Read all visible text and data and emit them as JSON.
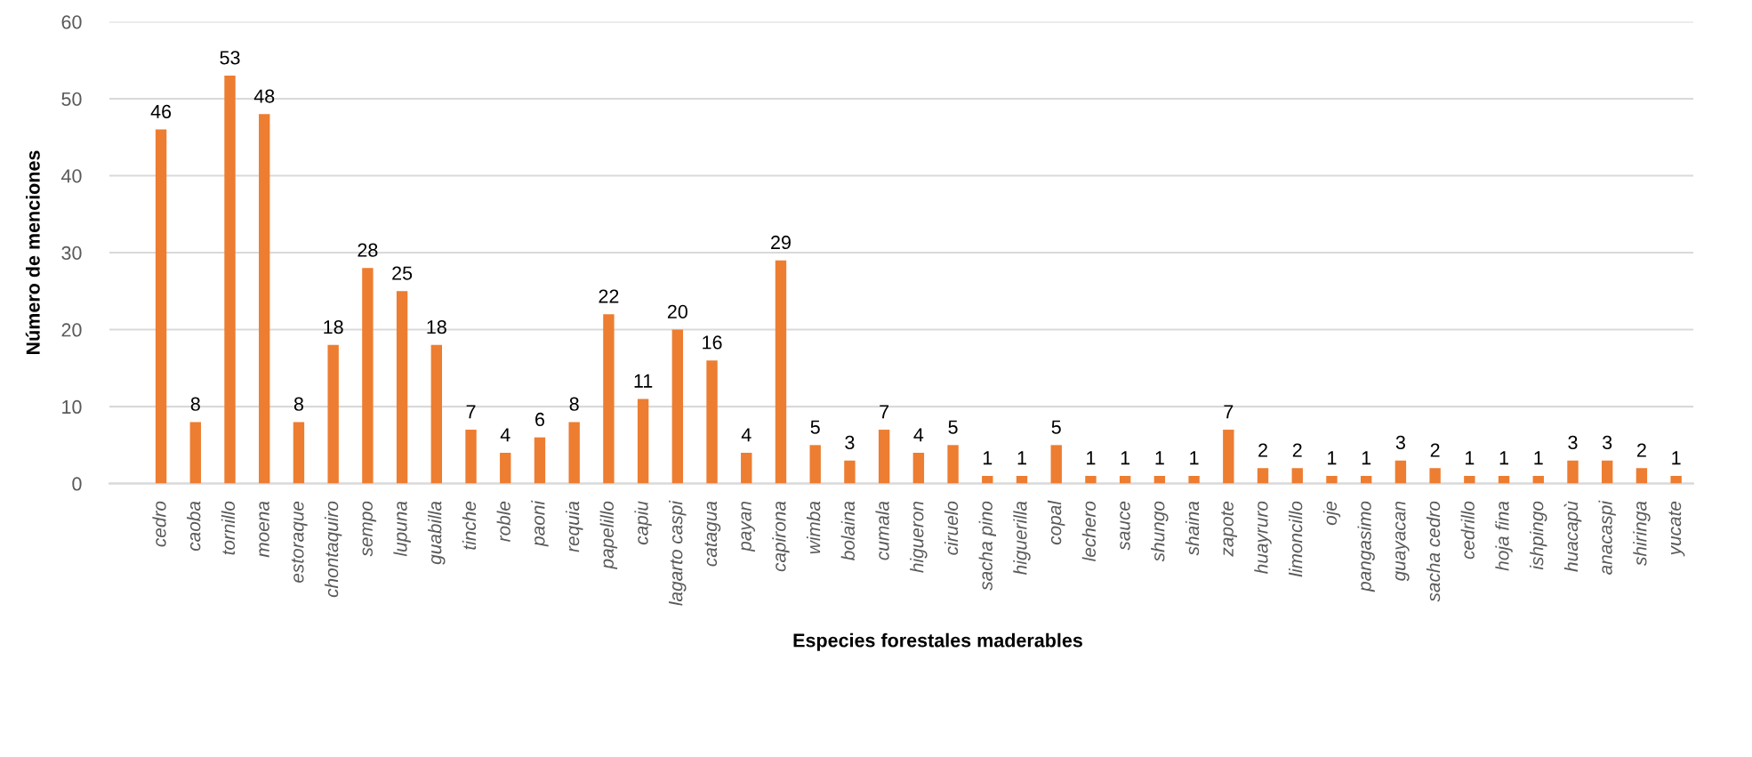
{
  "chart_data": {
    "type": "bar",
    "xlabel": "Especies forestales maderables",
    "ylabel": "Número de menciones",
    "categories": [
      "cedro",
      "caoba",
      "tornillo",
      "moena",
      "estoraque",
      "chontaquiro",
      "sempo",
      "lupuna",
      "guabilla",
      "tinche",
      "roble",
      "paoni",
      "requia",
      "papelillo",
      "capiu",
      "lagarto caspi",
      "catagua",
      "payan",
      "capirona",
      "wimba",
      "bolaina",
      "cumala",
      "higueron",
      "ciruelo",
      "sacha pino",
      "higuerilla",
      "copal",
      "lechero",
      "sauce",
      "shungo",
      "shaina",
      "zapote",
      "huayruro",
      "limoncillo",
      "oje",
      "pangasimo",
      "guayacan",
      "sacha cedro",
      "cedrillo",
      "hoja fina",
      "ishpingo",
      "huacapù",
      "anacaspi",
      "shiringa",
      "yucate"
    ],
    "values": [
      46,
      8,
      53,
      48,
      8,
      18,
      28,
      25,
      18,
      7,
      4,
      6,
      8,
      22,
      11,
      20,
      16,
      4,
      29,
      5,
      3,
      7,
      4,
      5,
      1,
      1,
      5,
      1,
      1,
      1,
      1,
      7,
      2,
      2,
      1,
      1,
      3,
      2,
      1,
      1,
      1,
      3,
      3,
      2,
      1
    ],
    "color": "#ed7d31",
    "ylim": [
      0,
      60
    ],
    "yticks": [
      0,
      10,
      20,
      30,
      40,
      50,
      60
    ],
    "grid": "y",
    "data_labels": true
  }
}
